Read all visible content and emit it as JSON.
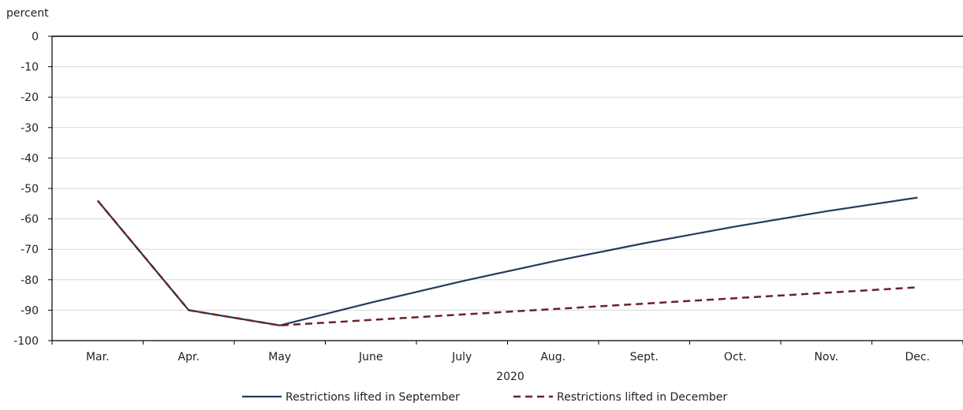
{
  "chart_data": {
    "type": "line",
    "ylabel": "percent",
    "xlabel": "2020",
    "categories": [
      "Mar.",
      "Apr.",
      "May",
      "June",
      "July",
      "Aug.",
      "Sept.",
      "Oct.",
      "Nov.",
      "Dec."
    ],
    "ylim": [
      -100,
      0
    ],
    "yticks": [
      0,
      -10,
      -20,
      -30,
      -40,
      -50,
      -60,
      -70,
      -80,
      -90,
      -100
    ],
    "grid": true,
    "legend_position": "bottom",
    "series": [
      {
        "name": "Restrictions lifted in September",
        "color": "#243a5e",
        "style": "solid",
        "values": [
          -54,
          -90,
          -95,
          -87.5,
          -80.5,
          -74,
          -68,
          -62.5,
          -57.5,
          -53
        ]
      },
      {
        "name": "Restrictions lifted in December",
        "color": "#6b2226",
        "style": "dashed",
        "values": [
          -54,
          -90,
          -95,
          null,
          null,
          null,
          null,
          null,
          null,
          -82.5
        ],
        "note_hidden": null
      }
    ]
  }
}
